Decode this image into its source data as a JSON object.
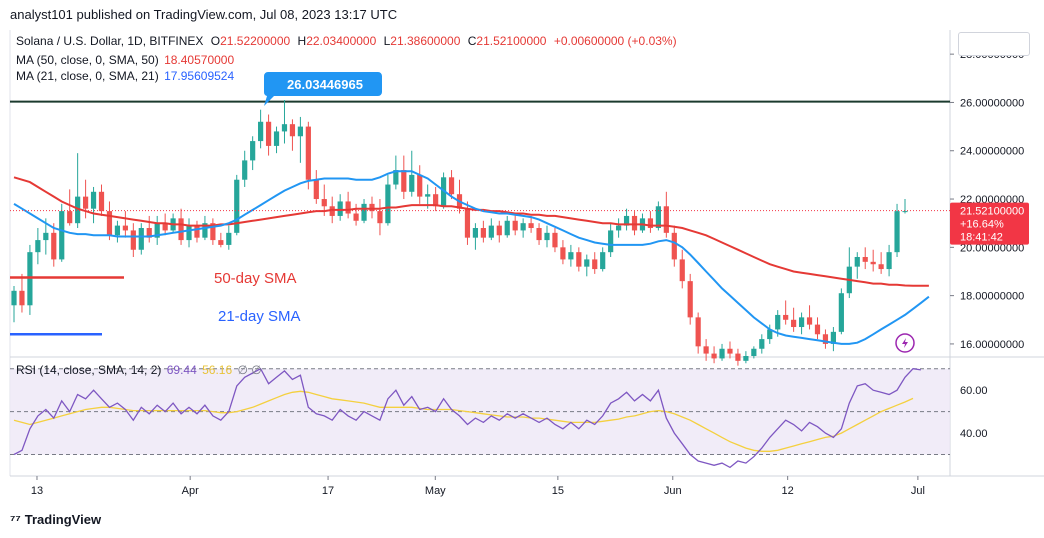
{
  "header": {
    "published": "analyst101 published on TradingView.com, Jul 08, 2023 13:17 UTC"
  },
  "legend": {
    "symbol": "Solana / U.S. Dollar, 1D, BITFINEX",
    "open_label": "O",
    "open": "21.52200000",
    "high_label": "H",
    "high": "22.03400000",
    "low_label": "L",
    "low": "21.38600000",
    "close_label": "C",
    "close": "21.52100000",
    "change": "+0.00600000 (+0.03%)",
    "ma50_label": "MA (50, close, 0, SMA, 50)",
    "ma50_value": "18.40570000",
    "ma21_label": "MA (21, close, 0, SMA, 21)",
    "ma21_value": "17.95609524",
    "rsi_label": "RSI (14, close, SMA, 14, 2)",
    "rsi_value": "69.44",
    "rsi_sma_value": "56.16",
    "rsi_extra": "∅ ∅"
  },
  "footer": {
    "brand": "TradingView"
  },
  "colors": {
    "up": "#26a69a",
    "down": "#ef5350",
    "ma50": "#e53935",
    "ma21": "#2196f3",
    "rsi": "#7e57c2",
    "rsi_sma": "#f4d03f",
    "rsi_band": "#ede7f6",
    "price_tag": "#f23645",
    "callout": "#2196f3",
    "resistance": "#1b3a2e"
  },
  "chart_data": {
    "type": "candlestick",
    "title": "Solana / U.S. Dollar, 1D, BITFINEX",
    "y_axis": {
      "range": [
        15.5,
        29.0
      ],
      "ticks": [
        "28.00000000",
        "26.00000000",
        "24.00000000",
        "22.00000000",
        "20.00000000",
        "18.00000000",
        "16.00000000"
      ]
    },
    "x_axis": {
      "tick_labels": [
        "13",
        "Apr",
        "17",
        "May",
        "15",
        "Jun",
        "12",
        "Jul"
      ]
    },
    "current_price": {
      "price": "21.52100000",
      "change_pct": "+16.64%",
      "countdown": "18:41:42",
      "value": 21.521
    },
    "resistance": {
      "value": 26.03446965,
      "label": "26.03446965"
    },
    "annotations": [
      {
        "text": "50-day SMA",
        "color": "#e53935",
        "line_value": 18.75
      },
      {
        "text": "21-day SMA",
        "color": "#2962ff",
        "line_value": 16.4
      }
    ],
    "candles": [
      {
        "o": 17.6,
        "h": 18.4,
        "l": 16.9,
        "c": 18.2
      },
      {
        "o": 18.2,
        "h": 18.9,
        "l": 17.3,
        "c": 17.6
      },
      {
        "o": 17.6,
        "h": 20.1,
        "l": 17.2,
        "c": 19.8
      },
      {
        "o": 19.8,
        "h": 20.8,
        "l": 19.3,
        "c": 20.3
      },
      {
        "o": 20.3,
        "h": 21.2,
        "l": 19.7,
        "c": 20.6
      },
      {
        "o": 20.6,
        "h": 21.0,
        "l": 19.2,
        "c": 19.5
      },
      {
        "o": 19.5,
        "h": 21.8,
        "l": 19.4,
        "c": 21.5
      },
      {
        "o": 21.5,
        "h": 22.4,
        "l": 20.9,
        "c": 21.0
      },
      {
        "o": 21.0,
        "h": 23.9,
        "l": 20.8,
        "c": 22.1
      },
      {
        "o": 22.1,
        "h": 22.8,
        "l": 21.2,
        "c": 21.6
      },
      {
        "o": 21.6,
        "h": 22.5,
        "l": 21.0,
        "c": 22.3
      },
      {
        "o": 22.3,
        "h": 22.6,
        "l": 21.3,
        "c": 21.5
      },
      {
        "o": 21.5,
        "h": 21.9,
        "l": 20.3,
        "c": 20.5
      },
      {
        "o": 20.5,
        "h": 21.1,
        "l": 20.2,
        "c": 20.9
      },
      {
        "o": 20.9,
        "h": 21.5,
        "l": 20.4,
        "c": 20.7
      },
      {
        "o": 20.7,
        "h": 21.0,
        "l": 19.6,
        "c": 19.9
      },
      {
        "o": 19.9,
        "h": 21.0,
        "l": 19.7,
        "c": 20.8
      },
      {
        "o": 20.8,
        "h": 21.3,
        "l": 20.2,
        "c": 20.4
      },
      {
        "o": 20.4,
        "h": 21.3,
        "l": 20.1,
        "c": 21.0
      },
      {
        "o": 21.0,
        "h": 21.4,
        "l": 20.5,
        "c": 20.7
      },
      {
        "o": 20.7,
        "h": 21.4,
        "l": 20.6,
        "c": 21.2
      },
      {
        "o": 21.2,
        "h": 21.6,
        "l": 20.1,
        "c": 20.3
      },
      {
        "o": 20.3,
        "h": 21.2,
        "l": 20.0,
        "c": 20.9
      },
      {
        "o": 20.9,
        "h": 21.1,
        "l": 20.2,
        "c": 20.4
      },
      {
        "o": 20.4,
        "h": 21.3,
        "l": 20.3,
        "c": 21.0
      },
      {
        "o": 21.0,
        "h": 21.2,
        "l": 20.1,
        "c": 20.3
      },
      {
        "o": 20.3,
        "h": 20.6,
        "l": 20.0,
        "c": 20.1
      },
      {
        "o": 20.1,
        "h": 20.9,
        "l": 19.9,
        "c": 20.6
      },
      {
        "o": 20.6,
        "h": 23.0,
        "l": 20.5,
        "c": 22.8
      },
      {
        "o": 22.8,
        "h": 24.0,
        "l": 22.5,
        "c": 23.6
      },
      {
        "o": 23.6,
        "h": 24.6,
        "l": 23.2,
        "c": 24.4
      },
      {
        "o": 24.4,
        "h": 25.7,
        "l": 24.1,
        "c": 25.2
      },
      {
        "o": 25.2,
        "h": 25.5,
        "l": 23.8,
        "c": 24.2
      },
      {
        "o": 24.2,
        "h": 25.0,
        "l": 23.9,
        "c": 24.8
      },
      {
        "o": 24.8,
        "h": 26.1,
        "l": 24.3,
        "c": 25.1
      },
      {
        "o": 25.1,
        "h": 25.3,
        "l": 24.0,
        "c": 24.6
      },
      {
        "o": 24.6,
        "h": 25.4,
        "l": 23.5,
        "c": 25.0
      },
      {
        "o": 25.0,
        "h": 25.2,
        "l": 22.4,
        "c": 22.8
      },
      {
        "o": 22.8,
        "h": 23.2,
        "l": 21.8,
        "c": 22.0
      },
      {
        "o": 22.0,
        "h": 22.6,
        "l": 21.3,
        "c": 21.7
      },
      {
        "o": 21.7,
        "h": 22.1,
        "l": 21.0,
        "c": 21.3
      },
      {
        "o": 21.3,
        "h": 22.2,
        "l": 21.1,
        "c": 21.9
      },
      {
        "o": 21.9,
        "h": 22.3,
        "l": 21.2,
        "c": 21.4
      },
      {
        "o": 21.4,
        "h": 21.8,
        "l": 20.9,
        "c": 21.1
      },
      {
        "o": 21.1,
        "h": 22.0,
        "l": 21.0,
        "c": 21.8
      },
      {
        "o": 21.8,
        "h": 22.1,
        "l": 21.2,
        "c": 21.5
      },
      {
        "o": 21.5,
        "h": 22.0,
        "l": 20.5,
        "c": 21.0
      },
      {
        "o": 21.0,
        "h": 23.0,
        "l": 20.9,
        "c": 22.6
      },
      {
        "o": 22.6,
        "h": 23.8,
        "l": 22.4,
        "c": 23.2
      },
      {
        "o": 23.2,
        "h": 23.8,
        "l": 22.0,
        "c": 22.3
      },
      {
        "o": 22.3,
        "h": 24.0,
        "l": 22.1,
        "c": 23.0
      },
      {
        "o": 23.0,
        "h": 23.4,
        "l": 21.8,
        "c": 22.1
      },
      {
        "o": 22.1,
        "h": 22.6,
        "l": 21.6,
        "c": 22.2
      },
      {
        "o": 22.2,
        "h": 22.5,
        "l": 21.5,
        "c": 21.7
      },
      {
        "o": 21.7,
        "h": 23.1,
        "l": 21.6,
        "c": 22.9
      },
      {
        "o": 22.9,
        "h": 23.2,
        "l": 22.0,
        "c": 22.2
      },
      {
        "o": 22.2,
        "h": 22.8,
        "l": 21.4,
        "c": 21.6
      },
      {
        "o": 21.6,
        "h": 21.9,
        "l": 20.1,
        "c": 20.4
      },
      {
        "o": 20.4,
        "h": 21.0,
        "l": 19.9,
        "c": 20.8
      },
      {
        "o": 20.8,
        "h": 21.1,
        "l": 20.2,
        "c": 20.4
      },
      {
        "o": 20.4,
        "h": 21.2,
        "l": 20.3,
        "c": 20.9
      },
      {
        "o": 20.9,
        "h": 21.1,
        "l": 20.2,
        "c": 20.5
      },
      {
        "o": 20.5,
        "h": 21.3,
        "l": 20.4,
        "c": 21.1
      },
      {
        "o": 21.1,
        "h": 21.4,
        "l": 20.5,
        "c": 20.7
      },
      {
        "o": 20.7,
        "h": 21.2,
        "l": 20.4,
        "c": 21.0
      },
      {
        "o": 21.0,
        "h": 21.3,
        "l": 20.6,
        "c": 20.8
      },
      {
        "o": 20.8,
        "h": 21.0,
        "l": 20.1,
        "c": 20.3
      },
      {
        "o": 20.3,
        "h": 20.9,
        "l": 20.0,
        "c": 20.6
      },
      {
        "o": 20.6,
        "h": 20.8,
        "l": 19.8,
        "c": 20.0
      },
      {
        "o": 20.0,
        "h": 20.3,
        "l": 19.3,
        "c": 19.5
      },
      {
        "o": 19.5,
        "h": 20.1,
        "l": 19.2,
        "c": 19.8
      },
      {
        "o": 19.8,
        "h": 20.0,
        "l": 19.0,
        "c": 19.2
      },
      {
        "o": 19.2,
        "h": 19.7,
        "l": 18.8,
        "c": 19.5
      },
      {
        "o": 19.5,
        "h": 19.8,
        "l": 18.9,
        "c": 19.1
      },
      {
        "o": 19.1,
        "h": 20.0,
        "l": 19.0,
        "c": 19.8
      },
      {
        "o": 19.8,
        "h": 21.0,
        "l": 19.6,
        "c": 20.7
      },
      {
        "o": 20.7,
        "h": 21.2,
        "l": 20.4,
        "c": 20.9
      },
      {
        "o": 20.9,
        "h": 21.6,
        "l": 20.7,
        "c": 21.3
      },
      {
        "o": 21.3,
        "h": 21.5,
        "l": 20.5,
        "c": 20.7
      },
      {
        "o": 20.7,
        "h": 21.4,
        "l": 20.6,
        "c": 21.2
      },
      {
        "o": 21.2,
        "h": 21.5,
        "l": 20.6,
        "c": 20.8
      },
      {
        "o": 20.8,
        "h": 21.9,
        "l": 20.7,
        "c": 21.7
      },
      {
        "o": 21.7,
        "h": 22.3,
        "l": 20.4,
        "c": 20.6
      },
      {
        "o": 20.6,
        "h": 20.9,
        "l": 19.2,
        "c": 19.5
      },
      {
        "o": 19.5,
        "h": 19.9,
        "l": 18.3,
        "c": 18.6
      },
      {
        "o": 18.6,
        "h": 18.9,
        "l": 16.8,
        "c": 17.1
      },
      {
        "o": 17.1,
        "h": 17.3,
        "l": 15.6,
        "c": 15.9
      },
      {
        "o": 15.9,
        "h": 16.2,
        "l": 15.3,
        "c": 15.6
      },
      {
        "o": 15.6,
        "h": 15.9,
        "l": 15.2,
        "c": 15.4
      },
      {
        "o": 15.4,
        "h": 16.0,
        "l": 15.3,
        "c": 15.8
      },
      {
        "o": 15.8,
        "h": 16.1,
        "l": 15.4,
        "c": 15.6
      },
      {
        "o": 15.6,
        "h": 15.8,
        "l": 15.1,
        "c": 15.3
      },
      {
        "o": 15.3,
        "h": 15.7,
        "l": 15.2,
        "c": 15.5
      },
      {
        "o": 15.5,
        "h": 15.9,
        "l": 15.4,
        "c": 15.8
      },
      {
        "o": 15.8,
        "h": 16.4,
        "l": 15.6,
        "c": 16.2
      },
      {
        "o": 16.2,
        "h": 16.8,
        "l": 16.0,
        "c": 16.6
      },
      {
        "o": 16.6,
        "h": 17.4,
        "l": 16.3,
        "c": 17.2
      },
      {
        "o": 17.2,
        "h": 17.8,
        "l": 16.8,
        "c": 17.0
      },
      {
        "o": 17.0,
        "h": 17.5,
        "l": 16.5,
        "c": 16.7
      },
      {
        "o": 16.7,
        "h": 17.3,
        "l": 16.4,
        "c": 17.1
      },
      {
        "o": 17.1,
        "h": 17.6,
        "l": 16.6,
        "c": 16.8
      },
      {
        "o": 16.8,
        "h": 17.1,
        "l": 16.2,
        "c": 16.4
      },
      {
        "o": 16.4,
        "h": 16.6,
        "l": 15.8,
        "c": 16.0
      },
      {
        "o": 16.0,
        "h": 16.7,
        "l": 15.7,
        "c": 16.5
      },
      {
        "o": 16.5,
        "h": 18.3,
        "l": 16.4,
        "c": 18.1
      },
      {
        "o": 18.1,
        "h": 20.0,
        "l": 17.9,
        "c": 19.2
      },
      {
        "o": 19.2,
        "h": 19.8,
        "l": 18.7,
        "c": 19.6
      },
      {
        "o": 19.6,
        "h": 20.0,
        "l": 19.1,
        "c": 19.4
      },
      {
        "o": 19.4,
        "h": 19.9,
        "l": 19.0,
        "c": 19.3
      },
      {
        "o": 19.3,
        "h": 19.8,
        "l": 18.9,
        "c": 19.1
      },
      {
        "o": 19.1,
        "h": 20.1,
        "l": 18.8,
        "c": 19.8
      },
      {
        "o": 19.8,
        "h": 21.8,
        "l": 19.6,
        "c": 21.5
      },
      {
        "o": 21.5,
        "h": 22.0,
        "l": 21.4,
        "c": 21.5
      }
    ],
    "ma50": [
      22.9,
      22.8,
      22.7,
      22.5,
      22.3,
      22.1,
      21.9,
      21.75,
      21.6,
      21.5,
      21.4,
      21.35,
      21.3,
      21.25,
      21.2,
      21.15,
      21.1,
      21.05,
      21.0,
      21.0,
      20.95,
      20.95,
      20.9,
      20.9,
      20.9,
      20.9,
      20.95,
      20.95,
      21.0,
      21.05,
      21.1,
      21.15,
      21.2,
      21.25,
      21.3,
      21.35,
      21.4,
      21.45,
      21.5,
      21.5,
      21.55,
      21.55,
      21.55,
      21.6,
      21.6,
      21.6,
      21.6,
      21.65,
      21.65,
      21.7,
      21.75,
      21.75,
      21.75,
      21.75,
      21.7,
      21.7,
      21.65,
      21.6,
      21.55,
      21.55,
      21.5,
      21.5,
      21.45,
      21.4,
      21.4,
      21.35,
      21.35,
      21.3,
      21.3,
      21.25,
      21.2,
      21.15,
      21.1,
      21.05,
      21.0,
      21.0,
      20.95,
      20.95,
      20.95,
      20.95,
      20.9,
      20.9,
      20.9,
      20.85,
      20.8,
      20.7,
      20.6,
      20.5,
      20.35,
      20.2,
      20.05,
      19.9,
      19.75,
      19.6,
      19.45,
      19.3,
      19.2,
      19.1,
      19.0,
      18.95,
      18.9,
      18.85,
      18.8,
      18.75,
      18.7,
      18.65,
      18.6,
      18.55,
      18.5,
      18.5,
      18.45,
      18.45,
      18.42,
      18.41,
      18.41,
      18.4057
    ],
    "ma21": [
      21.8,
      21.6,
      21.4,
      21.2,
      21.0,
      20.8,
      20.7,
      20.6,
      20.55,
      20.55,
      20.5,
      20.5,
      20.5,
      20.45,
      20.45,
      20.45,
      20.45,
      20.45,
      20.5,
      20.55,
      20.6,
      20.65,
      20.7,
      20.75,
      20.8,
      20.85,
      20.9,
      21.0,
      21.15,
      21.35,
      21.55,
      21.75,
      21.95,
      22.15,
      22.35,
      22.5,
      22.65,
      22.75,
      22.8,
      22.85,
      22.85,
      22.85,
      22.85,
      22.8,
      22.8,
      22.8,
      22.9,
      23.05,
      23.15,
      23.15,
      23.15,
      23.0,
      22.85,
      22.6,
      22.35,
      22.1,
      21.9,
      21.75,
      21.6,
      21.5,
      21.45,
      21.4,
      21.4,
      21.35,
      21.3,
      21.25,
      21.15,
      21.0,
      20.85,
      20.7,
      20.55,
      20.4,
      20.3,
      20.2,
      20.15,
      20.1,
      20.1,
      20.1,
      20.1,
      20.1,
      20.15,
      20.25,
      20.3,
      20.2,
      20.0,
      19.7,
      19.35,
      19.0,
      18.65,
      18.3,
      18.0,
      17.7,
      17.4,
      17.1,
      16.85,
      16.6,
      16.45,
      16.35,
      16.3,
      16.25,
      16.2,
      16.15,
      16.1,
      16.05,
      16.0,
      16.0,
      16.05,
      16.2,
      16.4,
      16.6,
      16.8,
      17.0,
      17.2,
      17.45,
      17.7,
      17.956
    ],
    "rsi": {
      "range": [
        20,
        75
      ],
      "ticks": [
        "60.00",
        "40.00"
      ],
      "overbought": 70,
      "oversold": 30,
      "mid": 50,
      "values": [
        30,
        32,
        42,
        48,
        51,
        47,
        55,
        50,
        58,
        56,
        60,
        56,
        52,
        54,
        51,
        46,
        52,
        49,
        53,
        50,
        54,
        49,
        52,
        49,
        53,
        48,
        46,
        50,
        62,
        66,
        68,
        70,
        63,
        66,
        69,
        65,
        67,
        52,
        49,
        48,
        46,
        51,
        48,
        46,
        50,
        48,
        46,
        56,
        60,
        53,
        57,
        51,
        52,
        50,
        56,
        51,
        48,
        44,
        47,
        45,
        48,
        46,
        49,
        47,
        49,
        47,
        45,
        47,
        44,
        42,
        45,
        42,
        46,
        44,
        48,
        54,
        56,
        59,
        55,
        58,
        55,
        60,
        47,
        40,
        35,
        30,
        27,
        26,
        25,
        26,
        24,
        27,
        26,
        29,
        33,
        38,
        42,
        46,
        44,
        41,
        45,
        43,
        40,
        38,
        42,
        54,
        62,
        63,
        60,
        59,
        58,
        60,
        66,
        70,
        69.44
      ],
      "sma": [
        46,
        45,
        44,
        45,
        46,
        47,
        48,
        49,
        50,
        51,
        51.5,
        52,
        52,
        51.5,
        51,
        50.5,
        50.5,
        50.5,
        50.5,
        50.5,
        50.5,
        50.5,
        50.5,
        50.5,
        50.5,
        50,
        49.5,
        49.5,
        50,
        51,
        52,
        53.5,
        55,
        56.5,
        58,
        59,
        59.5,
        59,
        58,
        57,
        56,
        55.5,
        55,
        54.5,
        54,
        53,
        52,
        52,
        52,
        52,
        52,
        51.5,
        51,
        51,
        51,
        51,
        50.5,
        50,
        49.5,
        49,
        48.5,
        48,
        47.5,
        47.5,
        47.5,
        47,
        47,
        46.5,
        46,
        45.5,
        45,
        45,
        45,
        45,
        45.5,
        46,
        46.5,
        47.5,
        48,
        49,
        50,
        50.5,
        50,
        49,
        47.5,
        46,
        44,
        42,
        40,
        38,
        36,
        34.5,
        33,
        32,
        31.5,
        31.5,
        32,
        33,
        34,
        35,
        36,
        37,
        38,
        38.5,
        40,
        42,
        44,
        46,
        48,
        50,
        51.5,
        53,
        54.5,
        56.16
      ]
    }
  }
}
